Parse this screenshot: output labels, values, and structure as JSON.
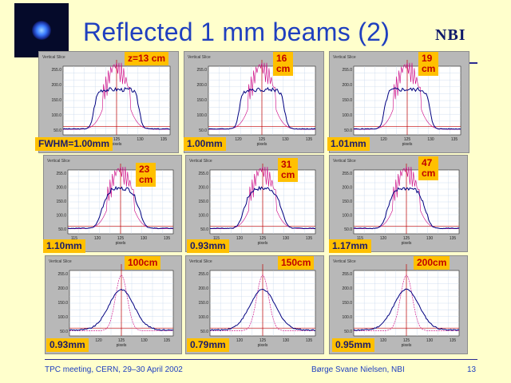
{
  "title": "Reflected 1 mm beams (2)",
  "logo_text": "NBI",
  "footer": {
    "left": "TPC meeting, CERN, 29–30 April 2002",
    "center": "Børge Svane Nielsen, NBI",
    "page": "13"
  },
  "colors": {
    "background": "#ffffcc",
    "title": "#1f3fbf",
    "label_bg": "#ffc000",
    "z_text": "#c00000",
    "fwhm_text": "#1a1a6a",
    "measured_curve": "#000080",
    "gaussian_curve": "#cc0080",
    "center_line": "#c00000"
  },
  "panels": [
    {
      "z": "z=13 cm",
      "fwhm": "FWHM=1.00mm",
      "profile": "flat",
      "header": "Vertical Slice",
      "yticks": [
        "255.0",
        "200.0",
        "150.0",
        "100.0",
        "50.0"
      ],
      "xticks": [
        "115",
        "120",
        "125",
        "130",
        "135"
      ],
      "xlabel": "pixels"
    },
    {
      "z": "16\ncm",
      "fwhm": "1.00mm",
      "profile": "flat",
      "header": "Vertical Slice",
      "yticks": [
        "255.0",
        "200.0",
        "150.0",
        "100.0",
        "50.0"
      ],
      "xticks": [
        "115",
        "120",
        "125",
        "130",
        "135"
      ],
      "xlabel": "pixels"
    },
    {
      "z": "19\ncm",
      "fwhm": "1.01mm",
      "profile": "flat",
      "header": "Vertical Slice",
      "yticks": [
        "255.0",
        "200.0",
        "150.0",
        "100.0",
        "50.0"
      ],
      "xticks": [
        "115",
        "120",
        "125",
        "130",
        "135"
      ],
      "xlabel": "pixels"
    },
    {
      "z": "23\ncm",
      "fwhm": "1.10mm",
      "profile": "ring",
      "header": "Vertical Slice",
      "yticks": [
        "255.0",
        "200.0",
        "150.0",
        "100.0",
        "50.0"
      ],
      "xticks": [
        "115",
        "120",
        "125",
        "130",
        "135"
      ],
      "xlabel": "pixels"
    },
    {
      "z": "31\ncm",
      "fwhm": "0.93mm",
      "profile": "ring",
      "header": "Vertical Slice",
      "yticks": [
        "255.0",
        "200.0",
        "150.0",
        "100.0",
        "50.0"
      ],
      "xticks": [
        "115",
        "120",
        "125",
        "130",
        "135"
      ],
      "xlabel": "pixels"
    },
    {
      "z": "47\ncm",
      "fwhm": "1.17mm",
      "profile": "ring",
      "header": "Vertical Slice",
      "yticks": [
        "255.0",
        "200.0",
        "150.0",
        "100.0",
        "50.0"
      ],
      "xticks": [
        "115",
        "120",
        "125",
        "130",
        "135"
      ],
      "xlabel": "pixels"
    },
    {
      "z": "100cm",
      "fwhm": "0.93mm",
      "profile": "peak",
      "header": "Vertical Slice",
      "yticks": [
        "255.0",
        "200.0",
        "150.0",
        "100.0",
        "50.0"
      ],
      "xticks": [
        "115",
        "120",
        "125",
        "130",
        "135"
      ],
      "xlabel": "pixels"
    },
    {
      "z": "150cm",
      "fwhm": "0.79mm",
      "profile": "peak",
      "header": "Vertical Slice",
      "yticks": [
        "255.0",
        "200.0",
        "150.0",
        "100.0",
        "50.0"
      ],
      "xticks": [
        "115",
        "120",
        "125",
        "130",
        "135"
      ],
      "xlabel": "pixels"
    },
    {
      "z": "200cm",
      "fwhm": "0.95mm",
      "profile": "peak",
      "header": "Vertical Slice",
      "yticks": [
        "255.0",
        "200.0",
        "150.0",
        "100.0",
        "50.0"
      ],
      "xticks": [
        "115",
        "120",
        "125",
        "130",
        "135"
      ],
      "xlabel": "pixels"
    }
  ]
}
